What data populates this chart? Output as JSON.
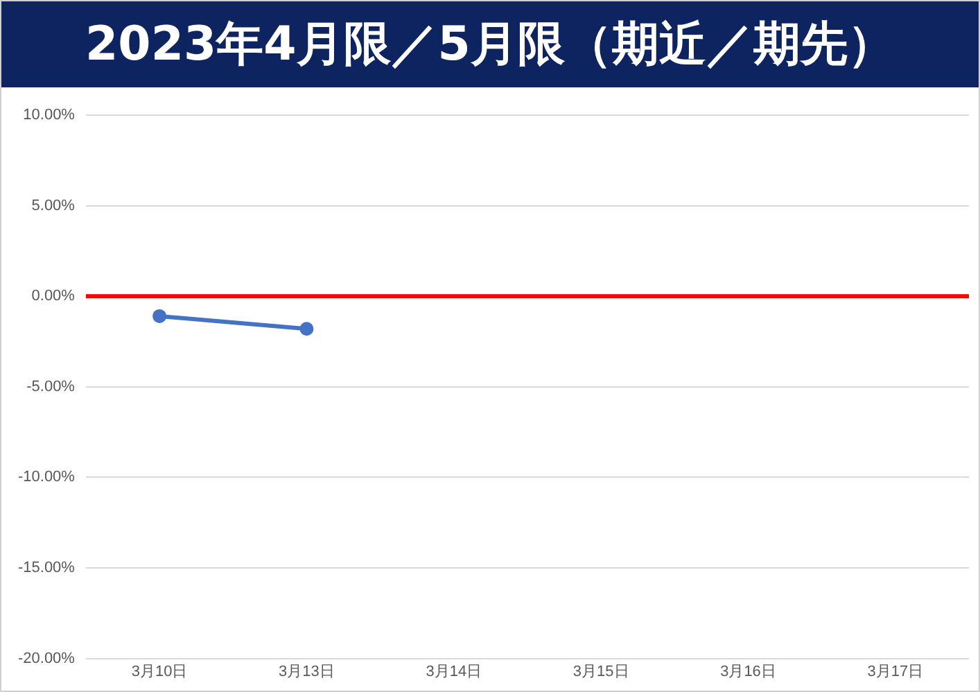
{
  "chart_data": {
    "type": "line",
    "title": "2023年4月限／5月限（期近／期先）",
    "categories": [
      "3月10日",
      "3月13日",
      "3月14日",
      "3月15日",
      "3月16日",
      "3月17日"
    ],
    "series": [
      {
        "color": "#4472c4",
        "values": [
          -1.1,
          -1.8,
          null,
          null,
          null,
          null
        ]
      }
    ],
    "ylim": [
      -20,
      10
    ],
    "yticks": [
      {
        "value": -20,
        "label": "-20.00%"
      },
      {
        "value": -15,
        "label": "-15.00%"
      },
      {
        "value": -10,
        "label": "-10.00%"
      },
      {
        "value": -5,
        "label": "-5.00%"
      },
      {
        "value": 0,
        "label": "0.00%"
      },
      {
        "value": 5,
        "label": "5.00%"
      },
      {
        "value": 10,
        "label": "10.00%"
      }
    ],
    "ref_lines": [
      {
        "axis": "y",
        "value": 0,
        "color": "#ff0000"
      }
    ],
    "grid": "y",
    "legend": false,
    "marker": "circle",
    "line_style": "solid"
  }
}
